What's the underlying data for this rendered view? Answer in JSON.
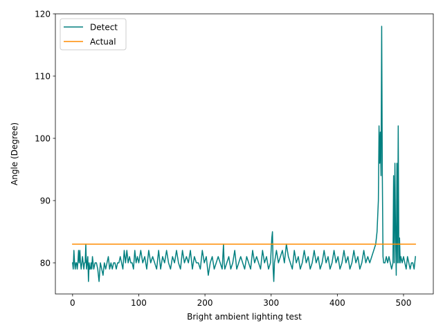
{
  "chart_data": {
    "type": "line",
    "title": "",
    "xlabel": "Bright ambient lighting test",
    "ylabel": "Angle (Degree)",
    "xlim": [
      -26,
      545
    ],
    "ylim": [
      75,
      120
    ],
    "x_ticks": [
      0,
      100,
      200,
      300,
      400,
      500
    ],
    "y_ticks": [
      80,
      90,
      100,
      110,
      120
    ],
    "x_tick_labels": [
      "0",
      "100",
      "200",
      "300",
      "400",
      "500"
    ],
    "y_tick_labels": [
      "80",
      "90",
      "100",
      "110",
      "120"
    ],
    "grid": false,
    "legend_position": "top-left",
    "series": [
      {
        "name": "Detect",
        "color": "#007f7f",
        "x": [
          0,
          1,
          2,
          3,
          4,
          5,
          6,
          7,
          8,
          9,
          10,
          11,
          12,
          13,
          14,
          15,
          16,
          17,
          18,
          19,
          20,
          21,
          22,
          23,
          24,
          25,
          26,
          27,
          28,
          29,
          30,
          32,
          34,
          36,
          38,
          40,
          42,
          44,
          46,
          48,
          50,
          52,
          54,
          56,
          58,
          60,
          62,
          64,
          66,
          68,
          70,
          72,
          74,
          76,
          78,
          80,
          82,
          84,
          86,
          88,
          90,
          92,
          94,
          96,
          98,
          100,
          103,
          106,
          109,
          112,
          115,
          118,
          121,
          124,
          127,
          130,
          133,
          136,
          139,
          142,
          145,
          148,
          151,
          154,
          157,
          160,
          163,
          166,
          169,
          172,
          175,
          178,
          181,
          184,
          187,
          190,
          193,
          196,
          199,
          202,
          205,
          208,
          211,
          214,
          217,
          220,
          223,
          226,
          228,
          229,
          230,
          233,
          236,
          239,
          242,
          245,
          248,
          251,
          254,
          257,
          260,
          263,
          266,
          269,
          272,
          275,
          278,
          281,
          284,
          287,
          290,
          293,
          296,
          299,
          301,
          302,
          303,
          304,
          305,
          308,
          311,
          314,
          317,
          320,
          323,
          326,
          329,
          332,
          335,
          338,
          341,
          344,
          347,
          350,
          353,
          356,
          359,
          362,
          365,
          368,
          371,
          374,
          377,
          380,
          383,
          386,
          389,
          392,
          395,
          398,
          401,
          404,
          407,
          410,
          413,
          416,
          419,
          422,
          425,
          428,
          431,
          434,
          437,
          440,
          443,
          446,
          449,
          452,
          455,
          458,
          460,
          462,
          463,
          464,
          465,
          466,
          467,
          468,
          469,
          470,
          472,
          474,
          476,
          478,
          480,
          482,
          484,
          485,
          486,
          487,
          488,
          489,
          490,
          491,
          492,
          493,
          494,
          495,
          496,
          498,
          500,
          502,
          504,
          506,
          508,
          510,
          512,
          514,
          516,
          518
        ],
        "y": [
          80,
          79,
          82,
          80,
          79,
          80,
          80,
          79,
          80,
          82,
          80,
          82,
          80,
          79,
          80,
          81,
          80,
          79,
          80,
          80,
          83,
          79,
          80,
          81,
          77,
          80,
          79,
          79,
          80,
          79,
          81,
          79,
          80,
          80,
          79,
          77,
          80,
          79,
          78,
          80,
          79,
          80,
          81,
          79,
          80,
          79,
          80,
          80,
          79,
          80,
          80,
          81,
          80,
          79,
          82,
          80,
          82,
          80,
          81,
          80,
          80,
          79,
          82,
          80,
          81,
          80,
          82,
          80,
          81,
          79,
          82,
          80,
          81,
          80,
          79,
          82,
          79,
          81,
          80,
          82,
          80,
          79,
          81,
          80,
          82,
          80,
          79,
          82,
          80,
          81,
          80,
          82,
          79,
          81,
          80,
          80,
          79,
          82,
          80,
          81,
          78,
          80,
          81,
          79,
          80,
          81,
          80,
          79,
          83,
          80,
          79,
          80,
          81,
          79,
          80,
          82,
          79,
          80,
          81,
          80,
          79,
          81,
          80,
          79,
          82,
          80,
          81,
          80,
          79,
          82,
          80,
          81,
          79,
          80,
          84,
          85,
          79,
          77,
          80,
          82,
          80,
          81,
          82,
          80,
          83,
          81,
          80,
          79,
          82,
          80,
          81,
          79,
          80,
          82,
          80,
          81,
          79,
          80,
          82,
          80,
          81,
          79,
          80,
          82,
          80,
          81,
          79,
          80,
          82,
          80,
          81,
          79,
          80,
          82,
          80,
          81,
          79,
          80,
          82,
          80,
          81,
          79,
          80,
          82,
          80,
          81,
          80,
          81,
          82,
          83,
          85,
          90,
          102,
          96,
          101,
          94,
          118,
          94,
          81,
          80,
          80,
          81,
          80,
          81,
          80,
          79,
          80,
          94,
          80,
          96,
          84,
          78,
          96,
          80,
          102,
          80,
          84,
          80,
          81,
          80,
          81,
          80,
          79,
          81,
          80,
          79,
          80,
          80,
          79,
          81
        ]
      },
      {
        "name": "Actual",
        "color": "#ff8c00",
        "x": [
          0,
          518
        ],
        "y": [
          83,
          83
        ]
      }
    ]
  }
}
